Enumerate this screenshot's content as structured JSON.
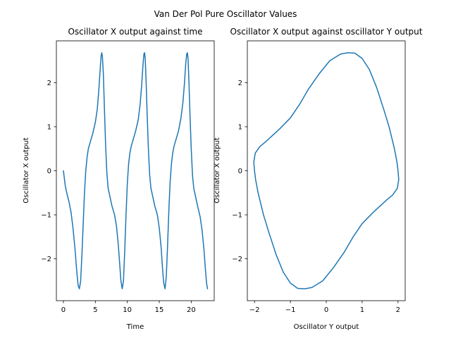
{
  "figure": {
    "suptitle": "Van Der Pol Pure Oscillator Values",
    "background": "#ffffff"
  },
  "chart_data": [
    {
      "type": "line",
      "title": "Oscillator X output against time",
      "xlabel": "Time",
      "ylabel": "Oscillator X output",
      "xlim": [
        -1.1,
        23.6
      ],
      "ylim": [
        -2.95,
        2.95
      ],
      "xticks": [
        0,
        5,
        10,
        15,
        20
      ],
      "yticks": [
        -2,
        -1,
        0,
        1,
        2
      ],
      "xtick_labels": [
        "0",
        "5",
        "10",
        "15",
        "20"
      ],
      "ytick_labels": [
        "−2",
        "−1",
        "0",
        "1",
        "2"
      ],
      "grid": false,
      "color": "#1f77b4",
      "series": [
        {
          "x": [
            0.0,
            0.3,
            0.6,
            0.9,
            1.2,
            1.5,
            1.8,
            2.1,
            2.3,
            2.5,
            2.7,
            2.9,
            3.1,
            3.3,
            3.5,
            3.7,
            3.9,
            4.2,
            4.6,
            5.0,
            5.3,
            5.55,
            5.75,
            5.9,
            6.0,
            6.1,
            6.25,
            6.4,
            6.6,
            6.8,
            7.0,
            7.3,
            7.6,
            8.0,
            8.3,
            8.6,
            8.8,
            9.0,
            9.2,
            9.4,
            9.6,
            9.8,
            10.0,
            10.2,
            10.4,
            10.6,
            10.9,
            11.3,
            11.7,
            12.0,
            12.25,
            12.45,
            12.6,
            12.7,
            12.8,
            12.95,
            13.1,
            13.3,
            13.5,
            13.7,
            14.0,
            14.3,
            14.7,
            15.0,
            15.3,
            15.5,
            15.7,
            15.9,
            16.1,
            16.3,
            16.5,
            16.7,
            16.9,
            17.1,
            17.3,
            17.6,
            18.0,
            18.4,
            18.7,
            18.95,
            19.15,
            19.3,
            19.4,
            19.5,
            19.65,
            19.8,
            20.0,
            20.2,
            20.4,
            20.7,
            21.0,
            21.4,
            21.7,
            22.0,
            22.2,
            22.4,
            22.55
          ],
          "y": [
            0.0,
            -0.35,
            -0.55,
            -0.72,
            -0.95,
            -1.3,
            -1.75,
            -2.3,
            -2.6,
            -2.68,
            -2.5,
            -1.9,
            -1.2,
            -0.5,
            0.0,
            0.3,
            0.5,
            0.65,
            0.85,
            1.1,
            1.4,
            1.85,
            2.3,
            2.6,
            2.68,
            2.6,
            2.2,
            1.5,
            0.6,
            -0.05,
            -0.4,
            -0.6,
            -0.8,
            -1.0,
            -1.25,
            -1.7,
            -2.1,
            -2.5,
            -2.68,
            -2.5,
            -1.8,
            -1.0,
            -0.3,
            0.15,
            0.4,
            0.55,
            0.7,
            0.9,
            1.15,
            1.5,
            1.95,
            2.4,
            2.65,
            2.68,
            2.55,
            2.0,
            1.3,
            0.5,
            -0.1,
            -0.4,
            -0.6,
            -0.8,
            -1.0,
            -1.3,
            -1.75,
            -2.2,
            -2.55,
            -2.68,
            -2.4,
            -1.7,
            -0.9,
            -0.25,
            0.15,
            0.4,
            0.55,
            0.7,
            0.9,
            1.2,
            1.55,
            2.0,
            2.45,
            2.65,
            2.68,
            2.55,
            2.0,
            1.3,
            0.5,
            -0.1,
            -0.4,
            -0.6,
            -0.8,
            -1.05,
            -1.35,
            -1.8,
            -2.2,
            -2.55,
            -2.68
          ]
        }
      ]
    },
    {
      "type": "line",
      "title": "Oscillator X output against oscillator Y output",
      "xlabel": "Oscillator Y output",
      "ylabel": "Oscillator X output",
      "xlim": [
        -2.2,
        2.2
      ],
      "ylim": [
        -2.95,
        2.95
      ],
      "xticks": [
        -2,
        -1,
        0,
        1,
        2
      ],
      "yticks": [
        -2,
        -1,
        0,
        1,
        2
      ],
      "xtick_labels": [
        "−2",
        "−1",
        "0",
        "1",
        "2"
      ],
      "ytick_labels": [
        "−2",
        "−1",
        "0",
        "1",
        "2"
      ],
      "grid": false,
      "color": "#1f77b4",
      "series": [
        {
          "x": [
            -2.0,
            -2.02,
            -1.98,
            -1.85,
            -1.7,
            -1.5,
            -1.3,
            -1.0,
            -0.75,
            -0.5,
            -0.2,
            0.1,
            0.4,
            0.6,
            0.8,
            1.0,
            1.2,
            1.4,
            1.6,
            1.75,
            1.9,
            1.97,
            2.0,
            2.02,
            1.98,
            1.85,
            1.7,
            1.5,
            1.3,
            1.0,
            0.75,
            0.5,
            0.2,
            -0.1,
            -0.4,
            -0.6,
            -0.8,
            -1.0,
            -1.2,
            -1.4,
            -1.6,
            -1.75,
            -1.9,
            -1.97,
            -2.0
          ],
          "y": [
            0.0,
            0.2,
            0.4,
            0.55,
            0.65,
            0.8,
            0.95,
            1.2,
            1.5,
            1.85,
            2.2,
            2.5,
            2.65,
            2.68,
            2.67,
            2.55,
            2.3,
            1.9,
            1.4,
            1.0,
            0.5,
            0.2,
            0.0,
            -0.2,
            -0.4,
            -0.55,
            -0.65,
            -0.8,
            -0.95,
            -1.2,
            -1.5,
            -1.85,
            -2.2,
            -2.5,
            -2.65,
            -2.68,
            -2.67,
            -2.55,
            -2.3,
            -1.9,
            -1.4,
            -1.0,
            -0.5,
            -0.2,
            0.0
          ]
        }
      ]
    }
  ]
}
